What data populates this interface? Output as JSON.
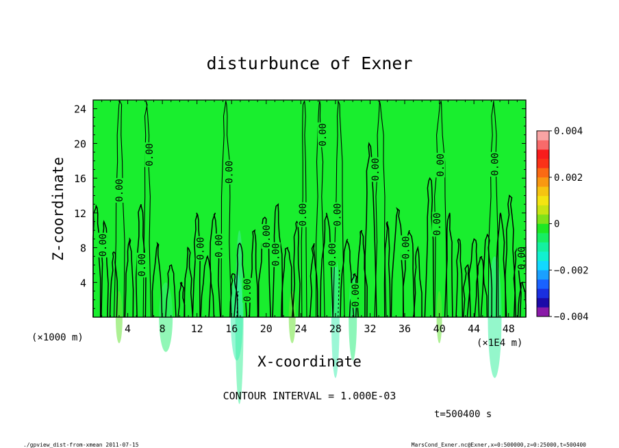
{
  "chart_data": {
    "type": "heatmap",
    "title": "disturbunce of Exner",
    "xlabel": "X-coordinate",
    "ylabel": "Z-coordinate",
    "x_unit_left": "(×1000 m)",
    "x_unit_right": "(×1E4 m)",
    "xlim": [
      0,
      50
    ],
    "ylim": [
      0,
      25
    ],
    "x_ticks": [
      4,
      8,
      12,
      16,
      20,
      24,
      28,
      32,
      36,
      40,
      44,
      48
    ],
    "x_tick_labels": [
      "4",
      "8",
      "12",
      "16",
      "20",
      "24",
      "28",
      "32",
      "36",
      "40",
      "44",
      "48"
    ],
    "y_ticks": [
      4,
      8,
      12,
      16,
      20,
      24
    ],
    "y_tick_labels": [
      "4",
      "8",
      "12",
      "16",
      "20",
      "24"
    ],
    "colorbar": {
      "range": [
        -0.004,
        0.004
      ],
      "labels": [
        {
          "value": 0.004,
          "text": "0.004"
        },
        {
          "value": 0.002,
          "text": "0.002"
        },
        {
          "value": 0,
          "text": "0"
        },
        {
          "value": -0.002,
          "text": "−0.002"
        },
        {
          "value": -0.004,
          "text": "−0.004"
        }
      ],
      "colors": [
        "#8a1aa8",
        "#1c0aa8",
        "#1a2fe0",
        "#1a62ff",
        "#1aa0ff",
        "#12d8ff",
        "#12f0d0",
        "#14f0a0",
        "#17ee62",
        "#1ee823",
        "#7fe21a",
        "#c8e414",
        "#f4e412",
        "#f6c412",
        "#f89812",
        "#fa6a14",
        "#fa3218",
        "#f81c1c",
        "#f86a6a",
        "#f8a4a4"
      ]
    },
    "contour_level_label": "0.00",
    "contour_labels": [
      {
        "x": 1.1,
        "y": 8.3,
        "text": "0.00"
      },
      {
        "x": 3.0,
        "y": 14.6,
        "text": "0.00"
      },
      {
        "x": 5.6,
        "y": 6.0,
        "text": "0.00"
      },
      {
        "x": 6.5,
        "y": 18.7,
        "text": "0.00"
      },
      {
        "x": 12.4,
        "y": 7.9,
        "text": "0.00"
      },
      {
        "x": 14.5,
        "y": 8.2,
        "text": "0.00"
      },
      {
        "x": 15.7,
        "y": 16.7,
        "text": "0.00"
      },
      {
        "x": 17.8,
        "y": 3.1,
        "text": "0.00"
      },
      {
        "x": 20.0,
        "y": 9.3,
        "text": "0.00"
      },
      {
        "x": 21.1,
        "y": 7.2,
        "text": "0.00"
      },
      {
        "x": 24.2,
        "y": 11.8,
        "text": "0.00"
      },
      {
        "x": 26.5,
        "y": 21.0,
        "text": "0.00"
      },
      {
        "x": 27.6,
        "y": 7.2,
        "text": "0.00"
      },
      {
        "x": 28.2,
        "y": 11.8,
        "text": "0.00"
      },
      {
        "x": 30.3,
        "y": 2.5,
        "text": "0.00"
      },
      {
        "x": 32.6,
        "y": 17.0,
        "text": "0.00"
      },
      {
        "x": 36.1,
        "y": 8.0,
        "text": "0.00"
      },
      {
        "x": 39.7,
        "y": 10.7,
        "text": "0.00"
      },
      {
        "x": 40.1,
        "y": 17.5,
        "text": "0.00"
      },
      {
        "x": 46.4,
        "y": 17.6,
        "text": "0.00"
      },
      {
        "x": 49.5,
        "y": 6.8,
        "text": "0.00"
      }
    ],
    "contour_interval": "CONTOUR INTERVAL = 1.000E-03",
    "time_label": "t=500400 s",
    "footer_left": "./gpview_dist-from-xmean  2011-07-15",
    "footer_right": "MarsCond_Exner.nc@Exner,x=0:500000,z=0:25000,t=500400"
  }
}
